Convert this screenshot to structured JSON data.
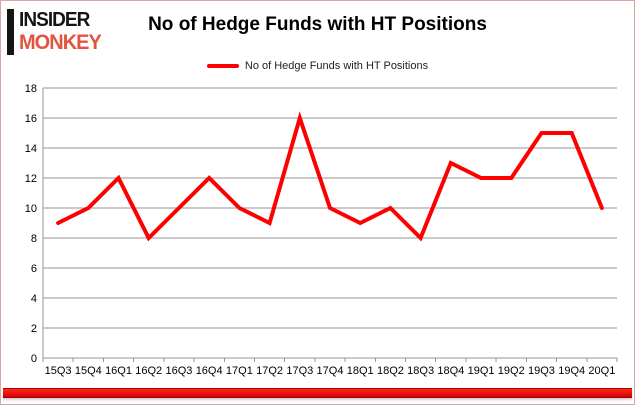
{
  "logo": {
    "line1": "INSIDER",
    "line2": "MONKEY",
    "accent_color": "#e2543f"
  },
  "header": {
    "title": "No of Hedge Funds with HT Positions"
  },
  "legend": {
    "label": "No of Hedge Funds with HT Positions",
    "line_color": "#fe0000"
  },
  "chart_data": {
    "type": "line",
    "title": "No of Hedge Funds with HT Positions",
    "categories": [
      "15Q3",
      "15Q4",
      "16Q1",
      "16Q2",
      "16Q3",
      "16Q4",
      "17Q1",
      "17Q2",
      "17Q3",
      "17Q4",
      "18Q1",
      "18Q2",
      "18Q3",
      "18Q4",
      "19Q1",
      "19Q2",
      "19Q3",
      "19Q4",
      "20Q1"
    ],
    "series": [
      {
        "name": "No of Hedge Funds with HT Positions",
        "color": "#fe0000",
        "values": [
          9,
          10,
          12,
          8,
          10,
          12,
          10,
          9,
          16,
          10,
          9,
          10,
          8,
          13,
          12,
          12,
          15,
          15,
          10
        ]
      }
    ],
    "ylim": [
      0,
      18
    ],
    "ytick_step": 2,
    "yticks": [
      0,
      2,
      4,
      6,
      8,
      10,
      12,
      14,
      16,
      18
    ],
    "xlabel": "",
    "ylabel": "",
    "grid": true,
    "legend_position": "top",
    "grid_color": "#969696",
    "axis_color": "#969696"
  },
  "colors": {
    "bottom_bar": "#e60000",
    "frame_border": "#dca3a3",
    "background": "#ffffff"
  }
}
